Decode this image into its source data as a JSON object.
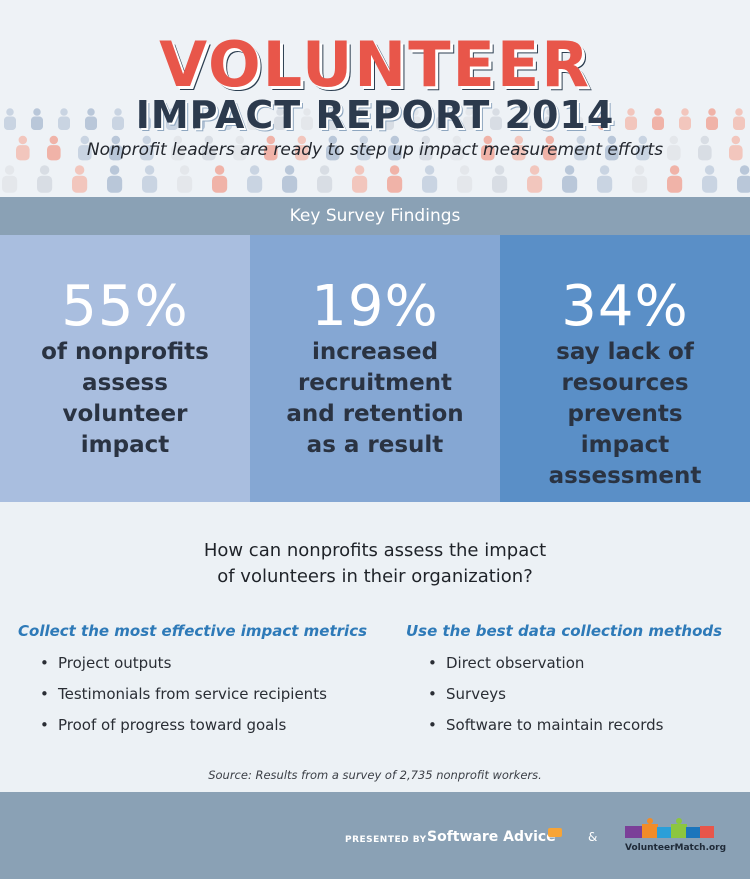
{
  "header": {
    "title": "VOLUNTEER",
    "subtitle": "IMPACT REPORT 2014",
    "tagline": "Nonprofit leaders are ready to step up impact measurement efforts"
  },
  "findings": {
    "label": "Key Survey Findings",
    "stats": [
      {
        "value": "55%",
        "text": "of nonprofits assess volunteer impact"
      },
      {
        "value": "19%",
        "text": "increased recruitment and retention as a result"
      },
      {
        "value": "34%",
        "text": "say lack of resources prevents impact assessment"
      }
    ]
  },
  "question": {
    "line1": "How can nonprofits assess the impact",
    "line2": "of volunteers in their organization?"
  },
  "metrics": {
    "title": "Collect the most effective impact metrics",
    "items": [
      "Project outputs",
      "Testimonials from service recipients",
      "Proof of progress toward goals"
    ]
  },
  "methods": {
    "title": "Use the best data collection methods",
    "items": [
      "Direct observation",
      "Surveys",
      "Software to maintain records"
    ]
  },
  "source": "Source: Results from a survey of 2,735 nonprofit workers.",
  "footer": {
    "presented_by": "PRESENTED BY",
    "software_advice": "Software Advice",
    "ampersand": "&",
    "volunteermatch": "VolunteerMatch.org"
  },
  "colors": {
    "title_red": "#e8564a",
    "navy": "#2c3a4d",
    "bar": "#8aa1b5",
    "stat1": "#a9bedf",
    "stat2": "#85a7d3",
    "stat3": "#5a8fc7",
    "link_blue": "#2e7ab8"
  }
}
